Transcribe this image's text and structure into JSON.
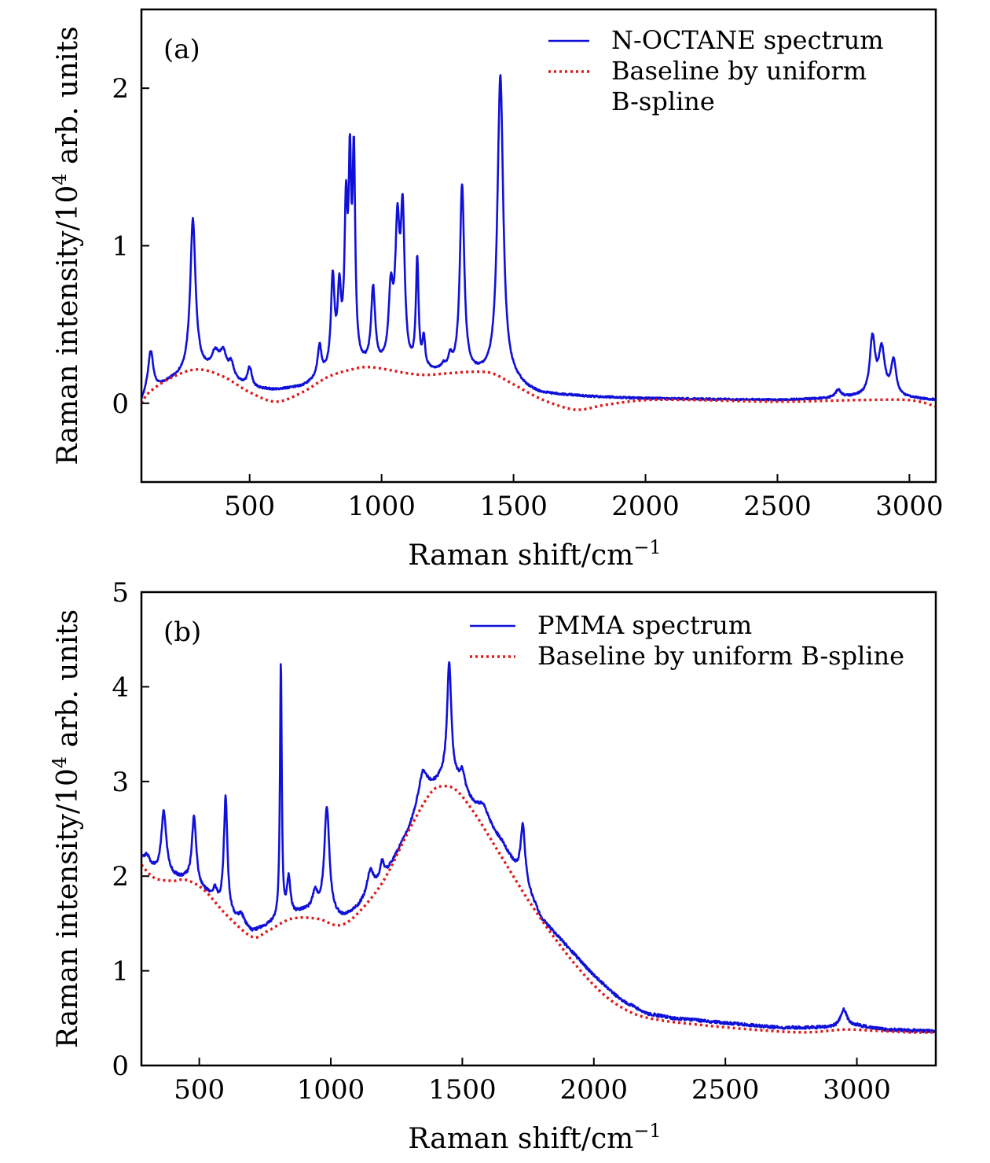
{
  "chart_data": [
    {
      "type": "line",
      "panel_label": "(a)",
      "xlabel": "Raman shift/cm",
      "xlabel_sup": "−1",
      "ylabel": "Raman intensity/10",
      "ylabel_sup": "4",
      "ylabel_tail": " arb. units",
      "xlim": [
        90,
        3100
      ],
      "ylim": [
        -0.5,
        2.5
      ],
      "xticks": [
        "500",
        "1000",
        "1500",
        "2000",
        "2500",
        "3000"
      ],
      "xtick_values": [
        500,
        1000,
        1500,
        2000,
        2500,
        3000
      ],
      "yticks": [
        "0",
        "1",
        "2"
      ],
      "ytick_values": [
        0,
        1,
        2
      ],
      "legend_position": "top-right",
      "series": [
        {
          "name": "N-OCTANE spectrum",
          "legend_lines": [
            "N-OCTANE spectrum"
          ],
          "style": "solid",
          "color": "#1010d8",
          "baseline": [
            [
              90,
              0
            ],
            [
              110,
              0.05
            ],
            [
              200,
              0.14
            ],
            [
              300,
              0.21
            ],
            [
              400,
              0.17
            ],
            [
              500,
              0.09
            ],
            [
              600,
              0.08
            ],
            [
              700,
              0.1
            ],
            [
              800,
              0.17
            ],
            [
              900,
              0.22
            ],
            [
              1000,
              0.21
            ],
            [
              1100,
              0.19
            ],
            [
              1200,
              0.19
            ],
            [
              1300,
              0.18
            ],
            [
              1400,
              0.17
            ],
            [
              1500,
              0.14
            ],
            [
              1550,
              0.09
            ],
            [
              1600,
              0.06
            ],
            [
              1800,
              0.04
            ],
            [
              2000,
              0.03
            ],
            [
              2500,
              0.02
            ],
            [
              2700,
              0.03
            ],
            [
              2800,
              0.04
            ],
            [
              3000,
              0.03
            ],
            [
              3100,
              0.02
            ]
          ],
          "peaks": [
            [
              125,
              0.26,
              12
            ],
            [
              285,
              0.96,
              12
            ],
            [
              370,
              0.12,
              18
            ],
            [
              400,
              0.13,
              14
            ],
            [
              430,
              0.09,
              12
            ],
            [
              500,
              0.13,
              10
            ],
            [
              765,
              0.2,
              9
            ],
            [
              815,
              0.58,
              8
            ],
            [
              840,
              0.46,
              8
            ],
            [
              865,
              0.93,
              7
            ],
            [
              880,
              1.13,
              6
            ],
            [
              895,
              1.25,
              6
            ],
            [
              968,
              0.49,
              9
            ],
            [
              1035,
              0.45,
              10
            ],
            [
              1060,
              0.83,
              10
            ],
            [
              1080,
              0.92,
              9
            ],
            [
              1135,
              0.69,
              6
            ],
            [
              1160,
              0.19,
              6
            ],
            [
              1235,
              0.03,
              8
            ],
            [
              1260,
              0.08,
              9
            ],
            [
              1305,
              1.19,
              10
            ],
            [
              1450,
              1.92,
              13
            ],
            [
              2730,
              0.05,
              12
            ],
            [
              2860,
              0.36,
              12
            ],
            [
              2895,
              0.29,
              14
            ],
            [
              2940,
              0.22,
              12
            ]
          ],
          "noise": 0.006
        },
        {
          "name": "Baseline by uniform B-spline",
          "legend_lines": [
            "Baseline by uniform",
            "B-spline"
          ],
          "style": "dotted",
          "color": "#e01818",
          "points": [
            [
              90,
              0
            ],
            [
              120,
              0.07
            ],
            [
              200,
              0.16
            ],
            [
              300,
              0.215
            ],
            [
              400,
              0.17
            ],
            [
              500,
              0.07
            ],
            [
              600,
              0.01
            ],
            [
              700,
              0.07
            ],
            [
              800,
              0.17
            ],
            [
              900,
              0.22
            ],
            [
              950,
              0.23
            ],
            [
              1000,
              0.22
            ],
            [
              1100,
              0.19
            ],
            [
              1170,
              0.18
            ],
            [
              1250,
              0.19
            ],
            [
              1350,
              0.2
            ],
            [
              1420,
              0.19
            ],
            [
              1500,
              0.12
            ],
            [
              1600,
              0.03
            ],
            [
              1700,
              -0.03
            ],
            [
              1760,
              -0.04
            ],
            [
              1850,
              -0.01
            ],
            [
              2000,
              0.02
            ],
            [
              2200,
              0.02
            ],
            [
              2500,
              0.01
            ],
            [
              2800,
              0.02
            ],
            [
              3000,
              0.02
            ],
            [
              3100,
              -0.02
            ]
          ]
        }
      ]
    },
    {
      "type": "line",
      "panel_label": "(b)",
      "xlabel": "Raman shift/cm",
      "xlabel_sup": "−1",
      "ylabel": "Raman intensity/10",
      "ylabel_sup": "4",
      "ylabel_tail": " arb. units",
      "xlim": [
        280,
        3300
      ],
      "ylim": [
        0,
        5
      ],
      "xticks": [
        "500",
        "1000",
        "1500",
        "2000",
        "2500",
        "3000"
      ],
      "xtick_values": [
        500,
        1000,
        1500,
        2000,
        2500,
        3000
      ],
      "yticks": [
        "0",
        "1",
        "2",
        "3",
        "4",
        "5"
      ],
      "ytick_values": [
        0,
        1,
        2,
        3,
        4,
        5
      ],
      "legend_position": "top-right",
      "series": [
        {
          "name": "PMMA spectrum",
          "legend_lines": [
            "PMMA spectrum"
          ],
          "style": "solid",
          "color": "#1010d8",
          "baseline": [
            [
              280,
              2.15
            ],
            [
              350,
              2.0
            ],
            [
              450,
              1.95
            ],
            [
              530,
              1.8
            ],
            [
              600,
              1.6
            ],
            [
              700,
              1.4
            ],
            [
              800,
              1.52
            ],
            [
              900,
              1.62
            ],
            [
              1000,
              1.55
            ],
            [
              1050,
              1.55
            ],
            [
              1100,
              1.65
            ],
            [
              1200,
              1.95
            ],
            [
              1300,
              2.5
            ],
            [
              1350,
              2.85
            ],
            [
              1420,
              3.0
            ],
            [
              1480,
              2.95
            ],
            [
              1550,
              2.7
            ],
            [
              1650,
              2.35
            ],
            [
              1750,
              1.85
            ],
            [
              1800,
              1.55
            ],
            [
              1900,
              1.25
            ],
            [
              2000,
              0.95
            ],
            [
              2100,
              0.7
            ],
            [
              2200,
              0.55
            ],
            [
              2300,
              0.5
            ],
            [
              2500,
              0.45
            ],
            [
              2700,
              0.4
            ],
            [
              2900,
              0.4
            ],
            [
              3000,
              0.42
            ],
            [
              3100,
              0.38
            ],
            [
              3300,
              0.36
            ]
          ],
          "peaks": [
            [
              300,
              0.1,
              15
            ],
            [
              365,
              0.68,
              12
            ],
            [
              480,
              0.72,
              10
            ],
            [
              560,
              0.12,
              10
            ],
            [
              600,
              1.22,
              8
            ],
            [
              660,
              0.1,
              15
            ],
            [
              810,
              2.72,
              4
            ],
            [
              840,
              0.4,
              8
            ],
            [
              940,
              0.2,
              12
            ],
            [
              985,
              1.15,
              12
            ],
            [
              1150,
              0.25,
              15
            ],
            [
              1195,
              0.2,
              10
            ],
            [
              1350,
              0.25,
              20
            ],
            [
              1450,
              1.25,
              10
            ],
            [
              1500,
              0.2,
              12
            ],
            [
              1580,
              0.15,
              25
            ],
            [
              1730,
              0.6,
              10
            ],
            [
              2950,
              0.18,
              15
            ]
          ],
          "noise": 0.015
        },
        {
          "name": "Baseline by uniform B-spline",
          "legend_lines": [
            "Baseline by uniform B-spline"
          ],
          "style": "dotted",
          "color": "#e01818",
          "points": [
            [
              280,
              2.12
            ],
            [
              330,
              1.98
            ],
            [
              400,
              1.95
            ],
            [
              450,
              1.96
            ],
            [
              520,
              1.85
            ],
            [
              600,
              1.6
            ],
            [
              700,
              1.36
            ],
            [
              760,
              1.42
            ],
            [
              850,
              1.55
            ],
            [
              950,
              1.55
            ],
            [
              1030,
              1.48
            ],
            [
              1100,
              1.6
            ],
            [
              1200,
              1.95
            ],
            [
              1300,
              2.5
            ],
            [
              1380,
              2.88
            ],
            [
              1430,
              2.95
            ],
            [
              1480,
              2.9
            ],
            [
              1550,
              2.65
            ],
            [
              1650,
              2.2
            ],
            [
              1750,
              1.75
            ],
            [
              1850,
              1.35
            ],
            [
              1950,
              1.0
            ],
            [
              2050,
              0.72
            ],
            [
              2150,
              0.55
            ],
            [
              2250,
              0.48
            ],
            [
              2400,
              0.43
            ],
            [
              2600,
              0.38
            ],
            [
              2800,
              0.35
            ],
            [
              2950,
              0.38
            ],
            [
              3050,
              0.37
            ],
            [
              3200,
              0.35
            ],
            [
              3300,
              0.35
            ]
          ]
        }
      ]
    }
  ]
}
